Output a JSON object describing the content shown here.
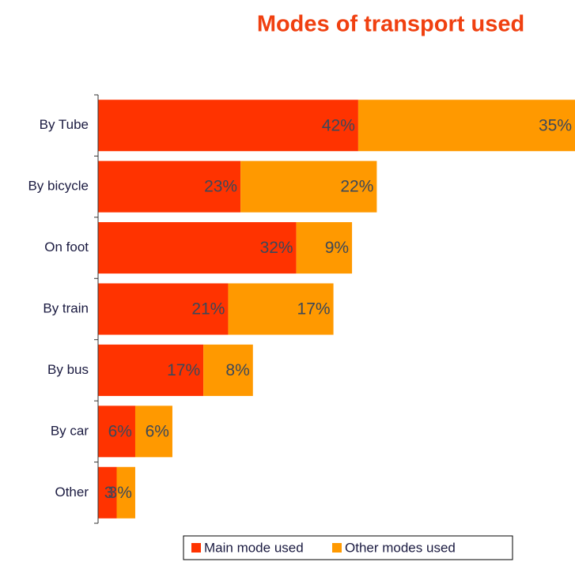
{
  "chart_data": {
    "type": "stacked-barh",
    "title": "Modes of transport used",
    "categories": [
      "By Tube",
      "By bicycle",
      "On foot",
      "By train",
      "By bus",
      "By car",
      "Other"
    ],
    "series": [
      {
        "name": "Main mode used",
        "color": "#ff3300",
        "values": [
          42,
          23,
          32,
          21,
          17,
          6,
          3
        ],
        "value_labels": [
          "42%",
          "23%",
          "32%",
          "21%",
          "17%",
          "6%",
          "3"
        ]
      },
      {
        "name": "Other modes used",
        "color": "#ff9900",
        "values": [
          35,
          22,
          9,
          17,
          8,
          6,
          3
        ],
        "value_labels": [
          "35%",
          "22%",
          "9%",
          "17%",
          "8%",
          "6%",
          "3%"
        ]
      }
    ],
    "legend": "bottom"
  }
}
